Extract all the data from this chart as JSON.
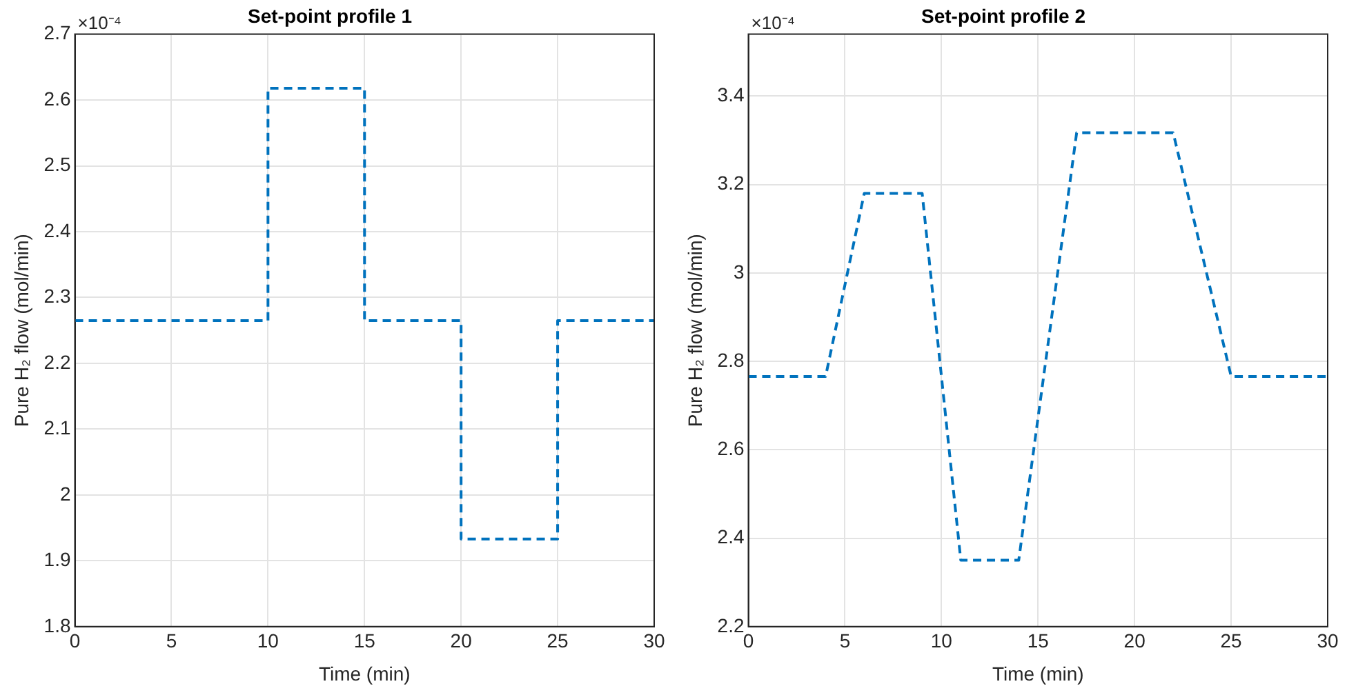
{
  "chart_data": [
    {
      "type": "line",
      "title": "Set-point profile 1",
      "xlabel": "Time (min)",
      "ylabel": "Pure H₂ flow (mol/min)",
      "annotations": [
        "×10⁻⁴"
      ],
      "x": [
        0,
        10,
        10,
        15,
        15,
        20,
        20,
        25,
        25,
        30
      ],
      "series": [
        {
          "color": "#0072bd",
          "values": [
            2.265,
            2.265,
            2.618,
            2.618,
            2.265,
            2.265,
            1.933,
            1.933,
            2.265,
            2.265
          ]
        }
      ],
      "xlim": [
        0,
        30
      ],
      "xticks": [
        0,
        5,
        10,
        15,
        20,
        25,
        30
      ],
      "ylim": [
        1.8,
        2.7
      ],
      "yticks": [
        1.8,
        1.9,
        2,
        2.1,
        2.2,
        2.3,
        2.4,
        2.5,
        2.6,
        2.7
      ],
      "grid": true,
      "legend": false,
      "marker": "none",
      "line_style": "dashed"
    },
    {
      "type": "line",
      "title": "Set-point profile 2",
      "xlabel": "Time (min)",
      "ylabel": "Pure H₂ flow (mol/min)",
      "annotations": [
        "×10⁻⁴"
      ],
      "x": [
        0,
        4,
        6,
        9,
        11,
        14,
        17,
        22,
        25,
        30
      ],
      "series": [
        {
          "color": "#0072bd",
          "values": [
            2.766,
            2.766,
            3.18,
            3.18,
            2.35,
            2.35,
            3.317,
            3.317,
            2.766,
            2.766
          ]
        }
      ],
      "xlim": [
        0,
        30
      ],
      "xticks": [
        0,
        5,
        10,
        15,
        20,
        25,
        30
      ],
      "ylim": [
        2.2,
        3.54
      ],
      "yticks": [
        2.2,
        2.4,
        2.6,
        2.8,
        3,
        3.2,
        3.4
      ],
      "grid": true,
      "legend": false,
      "marker": "none",
      "line_style": "dashed"
    }
  ]
}
